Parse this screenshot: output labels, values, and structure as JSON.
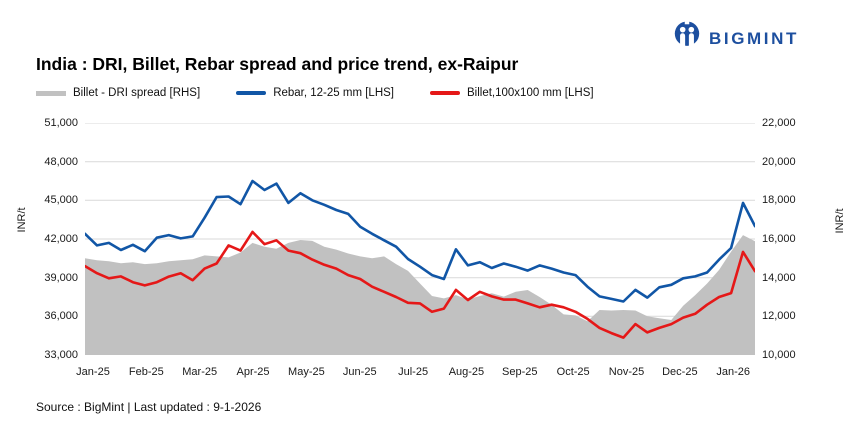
{
  "logo": {
    "brand": "BIGMINT",
    "color": "#1d4f9f"
  },
  "title": "India : DRI, Billet, Rebar spread and price trend, ex-Raipur",
  "source": "Source : BigMint | Last updated : 9-1-2026",
  "chart_data": {
    "type": "line",
    "grid": true,
    "legend_position": "top",
    "x_labels": [
      "Jan-25",
      "Feb-25",
      "Mar-25",
      "Apr-25",
      "May-25",
      "Jun-25",
      "Jul-25",
      "Aug-25",
      "Sep-25",
      "Oct-25",
      "Nov-25",
      "Dec-25",
      "Jan-26"
    ],
    "lhs_axis": {
      "label": "INR/t",
      "min": 33000,
      "max": 51000,
      "ticks": [
        "51,000",
        "48,000",
        "45,000",
        "42,000",
        "39,000",
        "36,000",
        "33,000"
      ]
    },
    "rhs_axis": {
      "label": "INR/t",
      "min": 10000,
      "max": 22000,
      "ticks": [
        "22,000",
        "20,000",
        "18,000",
        "16,000",
        "14,000",
        "12,000",
        "10,000"
      ]
    },
    "series": [
      {
        "name": "Billet - DRI spread  [RHS]",
        "axis": "rhs",
        "type": "area",
        "color": "#c1c1c1",
        "values": [
          15000,
          14900,
          14850,
          14750,
          14800,
          14700,
          14750,
          14850,
          14900,
          14950,
          15150,
          15100,
          15050,
          15300,
          15800,
          15600,
          15500,
          15800,
          15950,
          15900,
          15600,
          15450,
          15250,
          15100,
          15000,
          15100,
          14700,
          14350,
          13700,
          13050,
          12930,
          13100,
          12870,
          13050,
          13190,
          13020,
          13270,
          13360,
          13000,
          12600,
          12100,
          12050,
          11750,
          12330,
          12300,
          12330,
          12300,
          12000,
          11900,
          11810,
          12550,
          13100,
          13700,
          14400,
          15350,
          16200,
          15880
        ]
      },
      {
        "name": "Rebar, 12-25 mm [LHS]",
        "axis": "lhs",
        "type": "line",
        "color": "#1156a6",
        "values": [
          42400,
          41500,
          41700,
          41150,
          41550,
          41050,
          42100,
          42300,
          42050,
          42200,
          43650,
          45250,
          45300,
          44700,
          46500,
          45800,
          46300,
          44800,
          45550,
          45000,
          44650,
          44250,
          43950,
          42950,
          42400,
          41900,
          41400,
          40450,
          39850,
          39200,
          38900,
          41200,
          39950,
          40200,
          39750,
          40100,
          39850,
          39550,
          39950,
          39700,
          39400,
          39200,
          38300,
          37550,
          37350,
          37150,
          38050,
          37450,
          38250,
          38450,
          38950,
          39100,
          39400,
          40400,
          41300,
          44800,
          43000
        ]
      },
      {
        "name": "Billet,100x100 mm [LHS]",
        "axis": "lhs",
        "type": "line",
        "color": "#e51818",
        "values": [
          39900,
          39350,
          38950,
          39100,
          38650,
          38400,
          38650,
          39080,
          39340,
          38800,
          39700,
          40100,
          41500,
          41100,
          42550,
          41600,
          41900,
          41100,
          40900,
          40400,
          40000,
          39700,
          39200,
          38900,
          38300,
          37900,
          37500,
          37050,
          37000,
          36350,
          36600,
          38050,
          37270,
          37900,
          37550,
          37300,
          37300,
          37000,
          36700,
          36900,
          36700,
          36350,
          35800,
          35100,
          34700,
          34350,
          35400,
          34750,
          35100,
          35400,
          35900,
          36200,
          36900,
          37500,
          37800,
          41000,
          39500
        ]
      }
    ]
  }
}
